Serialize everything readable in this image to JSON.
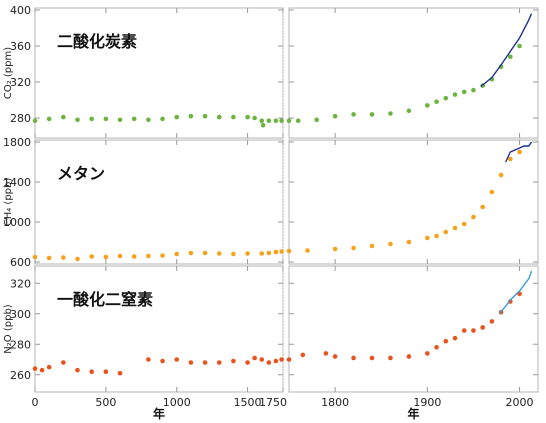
{
  "chart_data": [
    {
      "type": "scatter",
      "title": "二酸化炭素",
      "ylabel": "CO₂ (ppm)",
      "ylim": [
        260,
        400
      ],
      "yticks": [
        "280",
        "320",
        "360",
        "400"
      ],
      "colors": {
        "points": "#6cb33f",
        "line": "#1f2f8f"
      },
      "points_early": [
        [
          0,
          277
        ],
        [
          100,
          279
        ],
        [
          200,
          281
        ],
        [
          300,
          278
        ],
        [
          400,
          279
        ],
        [
          500,
          279
        ],
        [
          600,
          278
        ],
        [
          700,
          279
        ],
        [
          800,
          278
        ],
        [
          900,
          279
        ],
        [
          1000,
          281
        ],
        [
          1100,
          282
        ],
        [
          1200,
          282
        ],
        [
          1300,
          281
        ],
        [
          1400,
          281
        ],
        [
          1500,
          281
        ],
        [
          1550,
          280
        ],
        [
          1600,
          277
        ],
        [
          1610,
          272
        ],
        [
          1650,
          277
        ],
        [
          1700,
          277
        ],
        [
          1740,
          277
        ]
      ],
      "points_recent": [
        [
          1750,
          277
        ],
        [
          1760,
          277
        ],
        [
          1780,
          278
        ],
        [
          1800,
          282
        ],
        [
          1820,
          284
        ],
        [
          1840,
          284
        ],
        [
          1860,
          285
        ],
        [
          1880,
          288
        ],
        [
          1900,
          294
        ],
        [
          1910,
          298
        ],
        [
          1920,
          302
        ],
        [
          1930,
          306
        ],
        [
          1940,
          309
        ],
        [
          1950,
          311
        ],
        [
          1960,
          316
        ],
        [
          1970,
          323
        ],
        [
          1980,
          337
        ],
        [
          1990,
          348
        ],
        [
          2000,
          360
        ]
      ],
      "line": [
        [
          1958,
          315
        ],
        [
          1970,
          325
        ],
        [
          1980,
          339
        ],
        [
          1990,
          354
        ],
        [
          2000,
          369
        ],
        [
          2010,
          389
        ],
        [
          2013,
          396
        ]
      ]
    },
    {
      "type": "scatter",
      "title": "メタン",
      "ylabel": "CH₄ (ppb)",
      "ylim": [
        600,
        1800
      ],
      "yticks": [
        "600",
        "1000",
        "1400",
        "1800"
      ],
      "colors": {
        "points": "#f5a21b",
        "line": "#1f2f8f"
      },
      "points_early": [
        [
          0,
          650
        ],
        [
          100,
          640
        ],
        [
          200,
          645
        ],
        [
          300,
          630
        ],
        [
          400,
          655
        ],
        [
          500,
          650
        ],
        [
          600,
          660
        ],
        [
          700,
          655
        ],
        [
          800,
          660
        ],
        [
          900,
          665
        ],
        [
          1000,
          680
        ],
        [
          1100,
          690
        ],
        [
          1200,
          690
        ],
        [
          1300,
          685
        ],
        [
          1400,
          680
        ],
        [
          1500,
          685
        ],
        [
          1600,
          685
        ],
        [
          1650,
          690
        ],
        [
          1700,
          700
        ],
        [
          1740,
          705
        ]
      ],
      "points_recent": [
        [
          1750,
          710
        ],
        [
          1770,
          715
        ],
        [
          1800,
          730
        ],
        [
          1820,
          740
        ],
        [
          1840,
          760
        ],
        [
          1860,
          780
        ],
        [
          1880,
          800
        ],
        [
          1900,
          840
        ],
        [
          1910,
          860
        ],
        [
          1920,
          900
        ],
        [
          1930,
          940
        ],
        [
          1940,
          980
        ],
        [
          1950,
          1050
        ],
        [
          1960,
          1150
        ],
        [
          1970,
          1300
        ],
        [
          1980,
          1470
        ],
        [
          1990,
          1630
        ],
        [
          2000,
          1700
        ]
      ],
      "line": [
        [
          1985,
          1600
        ],
        [
          1990,
          1700
        ],
        [
          1995,
          1720
        ],
        [
          2000,
          1740
        ],
        [
          2005,
          1760
        ],
        [
          2010,
          1760
        ],
        [
          2013,
          1800
        ]
      ]
    },
    {
      "type": "scatter",
      "title": "一酸化二窒素",
      "ylabel": "N₂O (ppb)",
      "ylim": [
        250,
        330
      ],
      "yticks": [
        "260",
        "280",
        "300",
        "320"
      ],
      "colors": {
        "points": "#e8521c",
        "line": "#3f9ad6"
      },
      "points_early": [
        [
          0,
          264
        ],
        [
          50,
          263
        ],
        [
          100,
          265
        ],
        [
          200,
          268
        ],
        [
          300,
          263
        ],
        [
          400,
          262
        ],
        [
          500,
          262
        ],
        [
          600,
          261
        ],
        [
          800,
          270
        ],
        [
          900,
          269
        ],
        [
          1000,
          270
        ],
        [
          1100,
          268
        ],
        [
          1200,
          268
        ],
        [
          1300,
          268
        ],
        [
          1400,
          269
        ],
        [
          1500,
          268
        ],
        [
          1550,
          271
        ],
        [
          1600,
          270
        ],
        [
          1650,
          268
        ],
        [
          1700,
          269
        ],
        [
          1740,
          270
        ]
      ],
      "points_recent": [
        [
          1750,
          270
        ],
        [
          1765,
          273
        ],
        [
          1790,
          274
        ],
        [
          1800,
          272
        ],
        [
          1820,
          271
        ],
        [
          1840,
          271
        ],
        [
          1860,
          271
        ],
        [
          1880,
          272
        ],
        [
          1900,
          274
        ],
        [
          1910,
          278
        ],
        [
          1920,
          282
        ],
        [
          1930,
          284
        ],
        [
          1940,
          289
        ],
        [
          1950,
          289
        ],
        [
          1960,
          291
        ],
        [
          1970,
          295
        ],
        [
          1980,
          301
        ],
        [
          1990,
          308
        ],
        [
          2000,
          313
        ]
      ],
      "line": [
        [
          1978,
          300
        ],
        [
          1985,
          305
        ],
        [
          1990,
          309
        ],
        [
          2000,
          315
        ],
        [
          2010,
          323
        ],
        [
          2013,
          328
        ]
      ]
    }
  ],
  "x_early": {
    "range": [
      0,
      1750
    ],
    "ticks": [
      "0",
      "500",
      "1000",
      "1500",
      "1750"
    ]
  },
  "x_recent": {
    "range": [
      1750,
      2020
    ],
    "ticks": [
      "1800",
      "1900",
      "2000"
    ]
  },
  "xlabel": "年"
}
